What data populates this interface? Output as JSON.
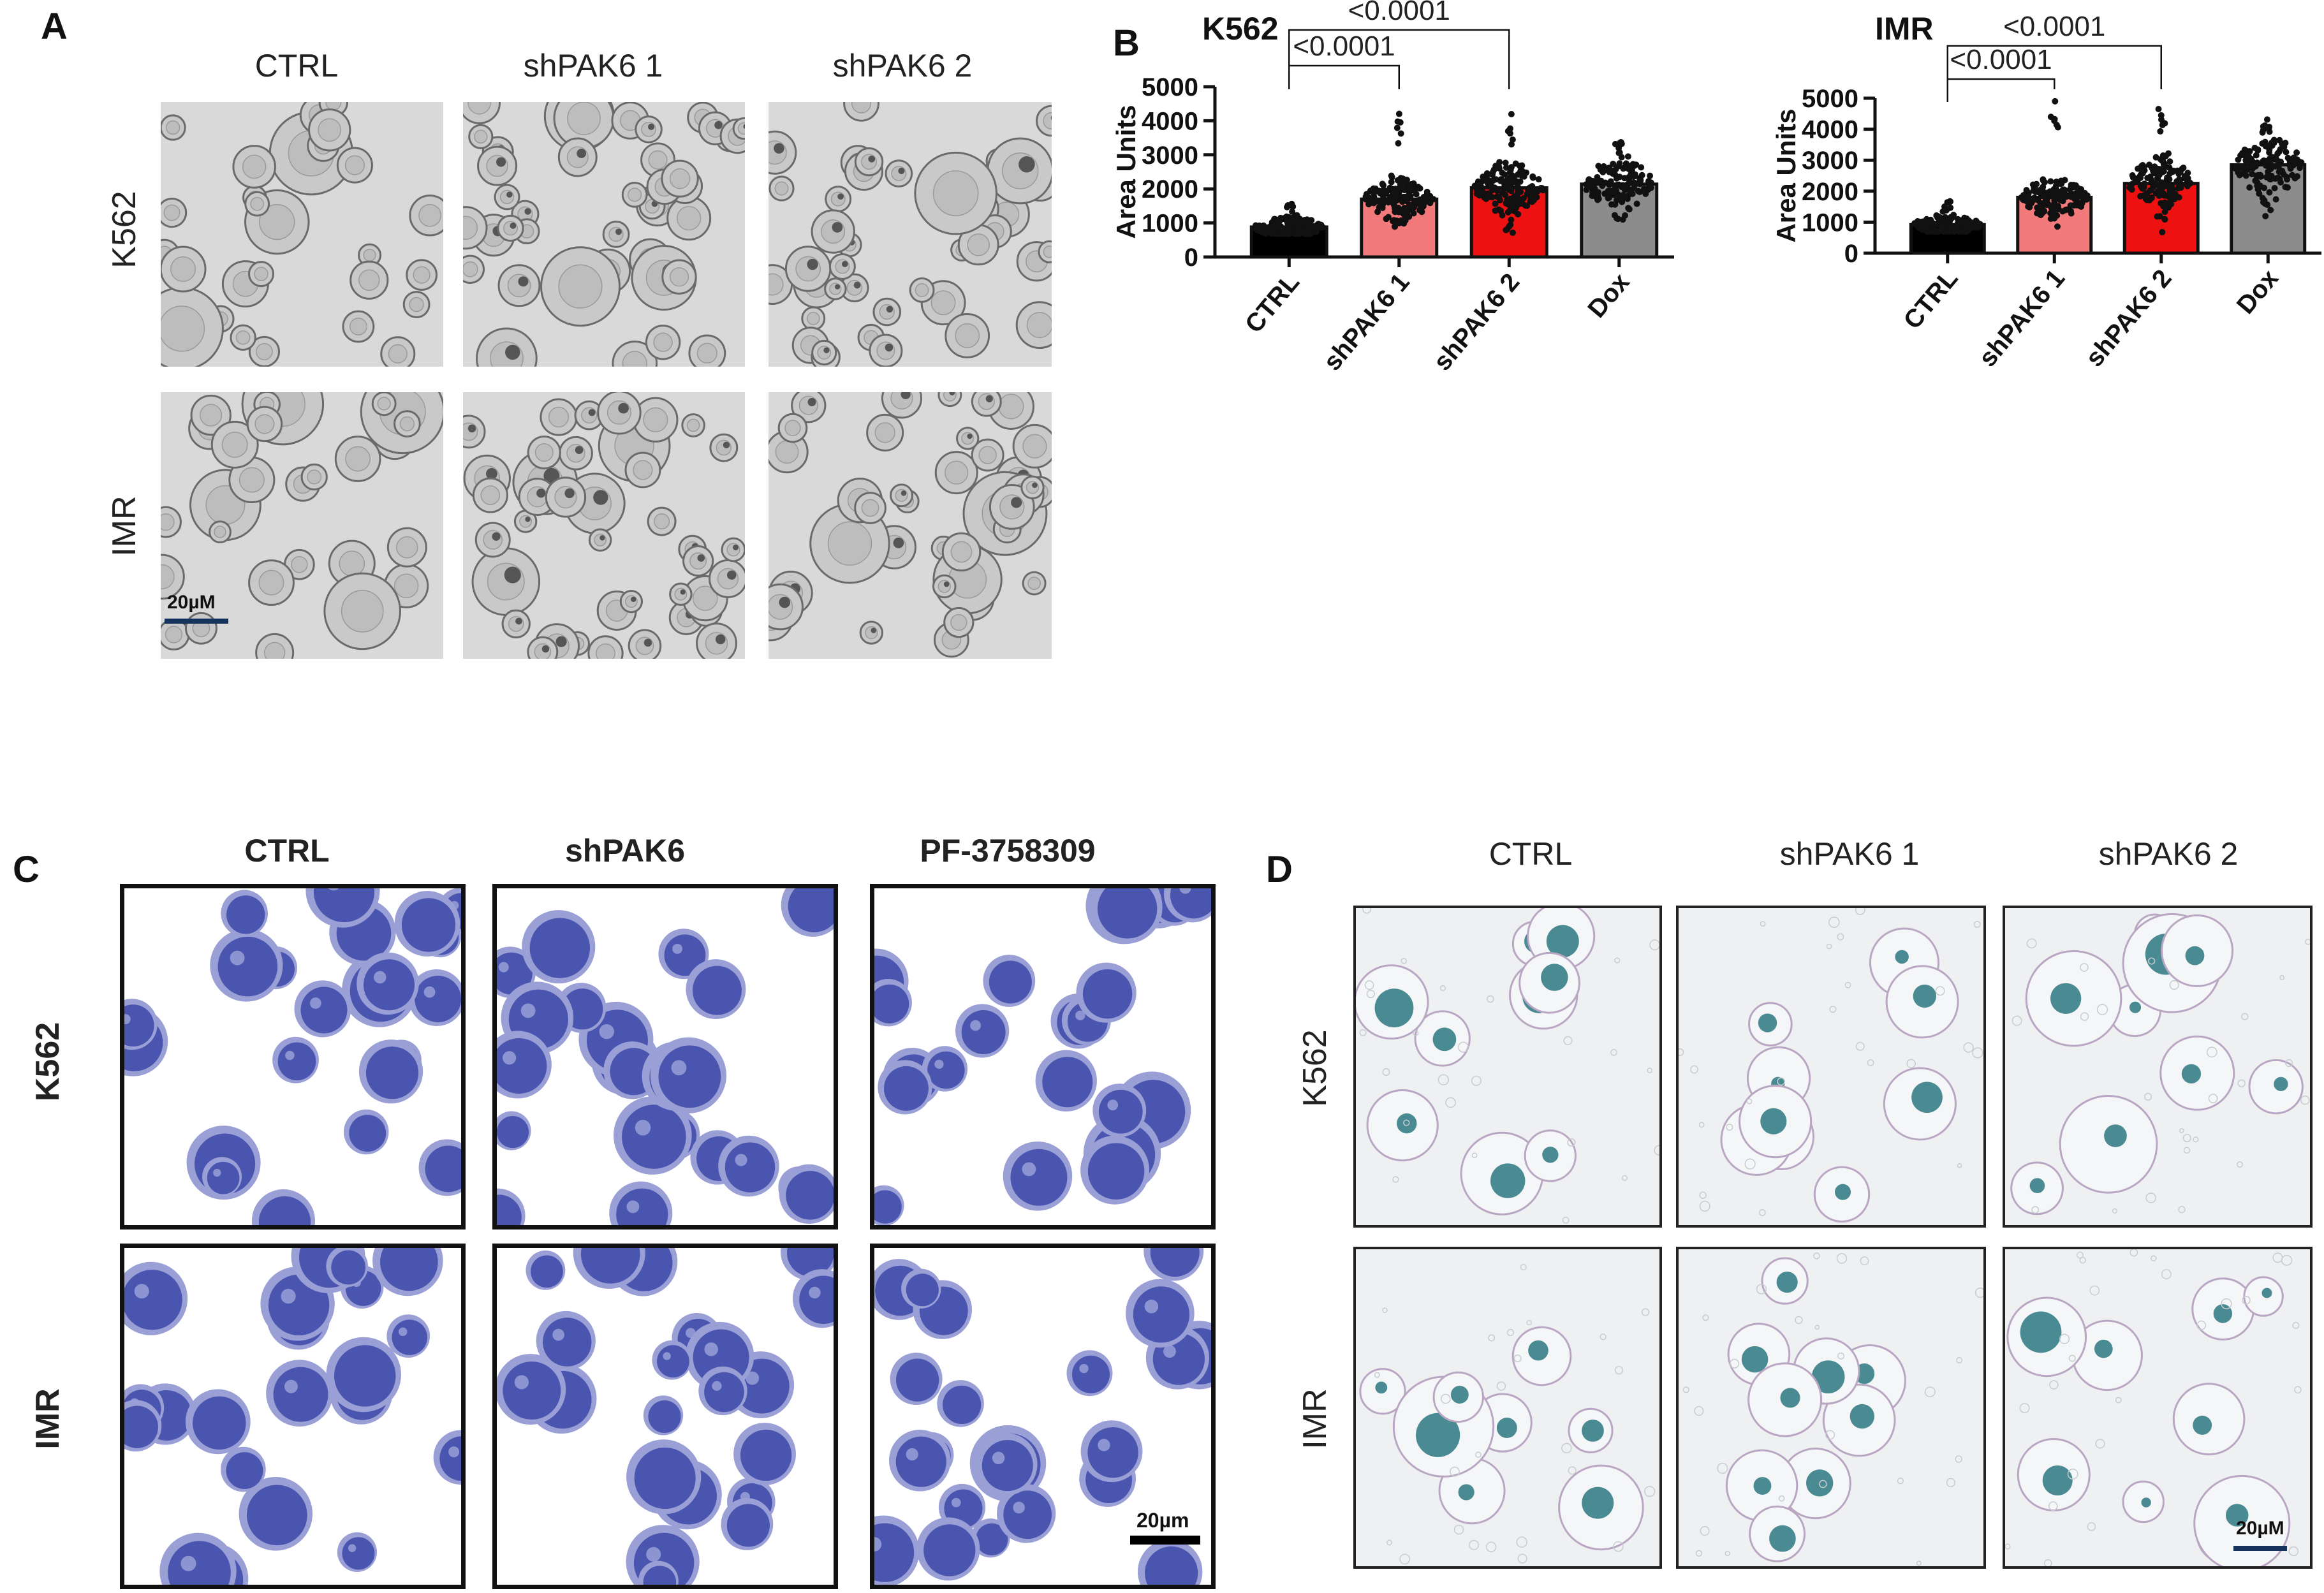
{
  "colors": {
    "bright_field_bg": "#d9d9d9",
    "giemsa_bg": "#ffffff",
    "giemsa_cell": "#4a55b0",
    "xgal_bg": "#eef0f2",
    "xgal_blue": "#1f6f78",
    "bar_ctrl": "#000000",
    "bar_shpak6_1": "#f27a7a",
    "bar_shpak6_2": "#ee1111",
    "bar_dox": "#8c8c8c",
    "scalebar_navy": "#16335e"
  },
  "panelA": {
    "letter": "A",
    "columns": [
      "CTRL",
      "shPAK6 1",
      "shPAK6 2"
    ],
    "rows": [
      "K562",
      "IMR"
    ],
    "scalebar": "20µM"
  },
  "panelB": {
    "letter": "B"
  },
  "panelC": {
    "letter": "C",
    "columns": [
      "CTRL",
      "shPAK6",
      "PF-3758309"
    ],
    "rows": [
      "K562",
      "IMR"
    ],
    "scalebar": "20µm"
  },
  "panelD": {
    "letter": "D",
    "columns": [
      "CTRL",
      "shPAK6 1",
      "shPAK6 2"
    ],
    "rows": [
      "K562",
      "IMR"
    ],
    "scalebar": "20µM"
  },
  "chart_data": [
    {
      "type": "bar",
      "title": "K562",
      "xlabel": "",
      "ylabel": "Area Units",
      "ylim": [
        0,
        5000
      ],
      "yticks": [
        0,
        1000,
        2000,
        3000,
        4000,
        5000
      ],
      "categories": [
        "CTRL",
        "shPAK6 1",
        "shPAK6 2",
        "Dox"
      ],
      "values": [
        880,
        1700,
        2030,
        2140
      ],
      "point_ranges": [
        [
          680,
          1600
        ],
        [
          700,
          4250
        ],
        [
          560,
          4230
        ],
        [
          1100,
          3500
        ]
      ],
      "grid": false,
      "comparisons": [
        {
          "from": "CTRL",
          "to": "shPAK6 1",
          "label": "<0.0001"
        },
        {
          "from": "CTRL",
          "to": "shPAK6 2",
          "label": "<0.0001"
        }
      ]
    },
    {
      "type": "bar",
      "title": "IMR",
      "xlabel": "",
      "ylabel": "Area Units",
      "ylim": [
        0,
        5000
      ],
      "yticks": [
        0,
        1000,
        2000,
        3000,
        4000,
        5000
      ],
      "categories": [
        "CTRL",
        "shPAK6 1",
        "shPAK6 2",
        "Dox"
      ],
      "values": [
        920,
        1800,
        2250,
        2850
      ],
      "point_ranges": [
        [
          700,
          1700
        ],
        [
          800,
          4950
        ],
        [
          500,
          4650
        ],
        [
          1000,
          4350
        ]
      ],
      "grid": false,
      "comparisons": [
        {
          "from": "CTRL",
          "to": "shPAK6 1",
          "label": "<0.0001"
        },
        {
          "from": "CTRL",
          "to": "shPAK6 2",
          "label": "<0.0001"
        }
      ]
    }
  ]
}
